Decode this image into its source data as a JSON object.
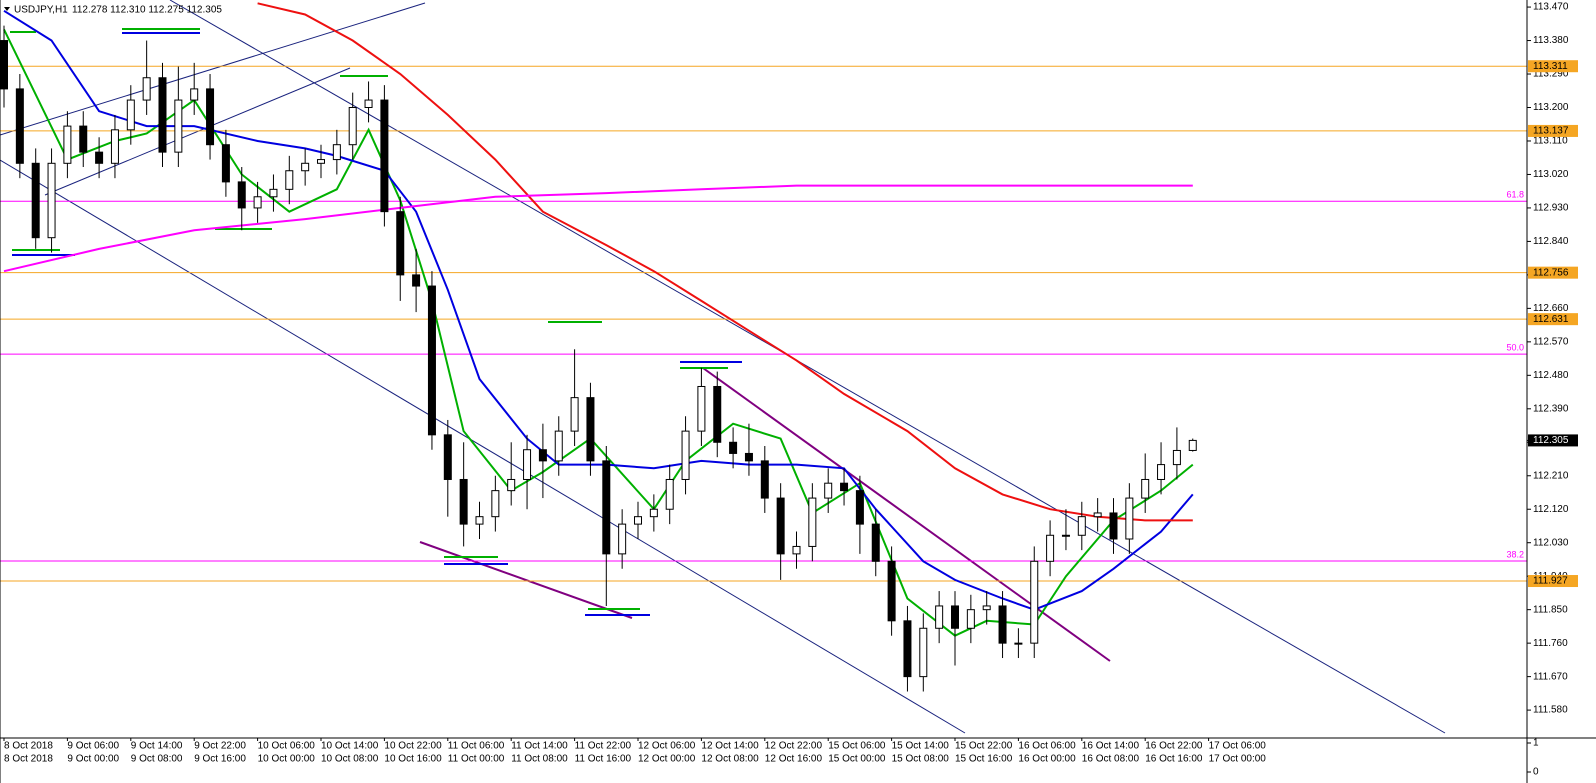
{
  "chart_data": {
    "type": "candlestick",
    "symbol": "USDJPY,H1",
    "quote": "112.278 112.310 112.275 112.305",
    "ylim": [
      111.505,
      113.489
    ],
    "yticks": [
      {
        "value": 113.47,
        "label": "113.470"
      },
      {
        "value": 113.38,
        "label": "113.380"
      },
      {
        "value": 113.29,
        "label": "113.290"
      },
      {
        "value": 113.2,
        "label": "113.200"
      },
      {
        "value": 113.11,
        "label": "113.110"
      },
      {
        "value": 113.02,
        "label": "113.020"
      },
      {
        "value": 112.93,
        "label": "112.930"
      },
      {
        "value": 112.84,
        "label": "112.840"
      },
      {
        "value": 112.75,
        "label": "112.750"
      },
      {
        "value": 112.66,
        "label": "112.660"
      },
      {
        "value": 112.57,
        "label": "112.570"
      },
      {
        "value": 112.48,
        "label": "112.480"
      },
      {
        "value": 112.39,
        "label": "112.390"
      },
      {
        "value": 112.3,
        "label": "112.300"
      },
      {
        "value": 112.21,
        "label": "112.210"
      },
      {
        "value": 112.12,
        "label": "112.120"
      },
      {
        "value": 112.03,
        "label": "112.030"
      },
      {
        "value": 111.94,
        "label": "111.940"
      },
      {
        "value": 111.85,
        "label": "111.850"
      },
      {
        "value": 111.76,
        "label": "111.760"
      },
      {
        "value": 111.67,
        "label": "111.670"
      },
      {
        "value": 111.58,
        "label": "111.580"
      }
    ],
    "candles": [
      [
        113.38,
        113.42,
        113.2,
        113.25
      ],
      [
        113.25,
        113.29,
        113.01,
        113.05
      ],
      [
        113.05,
        113.09,
        112.82,
        112.85
      ],
      [
        112.85,
        113.09,
        112.81,
        113.05
      ],
      [
        113.05,
        113.19,
        113.01,
        113.15
      ],
      [
        113.15,
        113.19,
        113.04,
        113.08
      ],
      [
        113.08,
        113.12,
        113.01,
        113.05
      ],
      [
        113.05,
        113.18,
        113.01,
        113.14
      ],
      [
        113.14,
        113.26,
        113.1,
        113.22
      ],
      [
        113.22,
        113.38,
        113.18,
        113.28
      ],
      [
        113.28,
        113.32,
        113.04,
        113.08
      ],
      [
        113.08,
        113.31,
        113.04,
        113.22
      ],
      [
        113.22,
        113.32,
        113.18,
        113.25
      ],
      [
        113.25,
        113.29,
        113.06,
        113.1
      ],
      [
        113.1,
        113.14,
        112.96,
        113.0
      ],
      [
        113.0,
        113.04,
        112.87,
        112.93
      ],
      [
        112.93,
        113.0,
        112.89,
        112.96
      ],
      [
        112.96,
        113.02,
        112.92,
        112.98
      ],
      [
        112.98,
        113.07,
        112.94,
        113.03
      ],
      [
        113.03,
        113.09,
        112.99,
        113.05
      ],
      [
        113.05,
        113.1,
        113.01,
        113.06
      ],
      [
        113.06,
        113.14,
        113.02,
        113.1
      ],
      [
        113.1,
        113.24,
        113.06,
        113.2
      ],
      [
        113.2,
        113.27,
        113.16,
        113.22
      ],
      [
        113.22,
        113.26,
        112.88,
        112.92
      ],
      [
        112.92,
        112.96,
        112.68,
        112.75
      ],
      [
        112.75,
        112.82,
        112.65,
        112.72
      ],
      [
        112.72,
        112.76,
        112.28,
        112.32
      ],
      [
        112.32,
        112.36,
        112.1,
        112.2
      ],
      [
        112.2,
        112.3,
        112.02,
        112.08
      ],
      [
        112.08,
        112.14,
        112.04,
        112.1
      ],
      [
        112.1,
        112.21,
        112.06,
        112.17
      ],
      [
        112.17,
        112.3,
        112.13,
        112.2
      ],
      [
        112.2,
        112.32,
        112.12,
        112.28
      ],
      [
        112.28,
        112.35,
        112.15,
        112.25
      ],
      [
        112.25,
        112.37,
        112.21,
        112.33
      ],
      [
        112.33,
        112.55,
        112.29,
        112.42
      ],
      [
        112.42,
        112.46,
        112.21,
        112.25
      ],
      [
        112.25,
        112.29,
        111.86,
        112.0
      ],
      [
        112.0,
        112.12,
        111.96,
        112.08
      ],
      [
        112.08,
        112.14,
        112.04,
        112.1
      ],
      [
        112.1,
        112.16,
        112.06,
        112.12
      ],
      [
        112.12,
        112.24,
        112.08,
        112.2
      ],
      [
        112.2,
        112.37,
        112.16,
        112.33
      ],
      [
        112.33,
        112.5,
        112.29,
        112.45
      ],
      [
        112.45,
        112.49,
        112.26,
        112.3
      ],
      [
        112.3,
        112.34,
        112.23,
        112.27
      ],
      [
        112.27,
        112.35,
        112.21,
        112.25
      ],
      [
        112.25,
        112.29,
        112.11,
        112.15
      ],
      [
        112.15,
        112.19,
        111.93,
        112.0
      ],
      [
        112.0,
        112.06,
        111.96,
        112.02
      ],
      [
        112.02,
        112.19,
        111.98,
        112.15
      ],
      [
        112.15,
        112.23,
        112.11,
        112.19
      ],
      [
        112.19,
        112.23,
        112.13,
        112.17
      ],
      [
        112.17,
        112.21,
        112.0,
        112.08
      ],
      [
        112.08,
        112.12,
        111.94,
        111.98
      ],
      [
        111.98,
        112.02,
        111.78,
        111.82
      ],
      [
        111.82,
        111.86,
        111.63,
        111.67
      ],
      [
        111.67,
        111.84,
        111.63,
        111.8
      ],
      [
        111.8,
        111.9,
        111.76,
        111.86
      ],
      [
        111.86,
        111.9,
        111.7,
        111.8
      ],
      [
        111.8,
        111.89,
        111.76,
        111.85
      ],
      [
        111.85,
        111.9,
        111.81,
        111.86
      ],
      [
        111.86,
        111.9,
        111.72,
        111.76
      ],
      [
        111.76,
        111.8,
        111.72,
        111.76
      ],
      [
        111.76,
        112.02,
        111.72,
        111.98
      ],
      [
        111.98,
        112.09,
        111.94,
        112.05
      ],
      [
        112.05,
        112.12,
        112.01,
        112.05
      ],
      [
        112.05,
        112.14,
        112.01,
        112.1
      ],
      [
        112.1,
        112.15,
        112.06,
        112.11
      ],
      [
        112.11,
        112.15,
        112.0,
        112.04
      ],
      [
        112.04,
        112.19,
        112.0,
        112.15
      ],
      [
        112.15,
        112.27,
        112.11,
        112.2
      ],
      [
        112.2,
        112.3,
        112.16,
        112.24
      ],
      [
        112.24,
        112.34,
        112.2,
        112.278
      ],
      [
        112.278,
        112.31,
        112.275,
        112.305
      ]
    ],
    "lines": [
      {
        "color": "#00b000",
        "x": [
          0,
          4,
          7,
          9,
          12,
          15,
          18,
          21,
          23,
          25,
          27,
          29,
          32,
          34,
          37,
          41,
          43,
          46,
          49,
          51,
          54,
          57,
          60,
          62,
          65,
          67,
          70,
          73,
          75
        ],
        "values": [
          113.41,
          113.06,
          113.11,
          113.13,
          113.22,
          113.02,
          112.92,
          112.98,
          113.14,
          112.95,
          112.68,
          112.33,
          112.17,
          112.22,
          112.31,
          112.12,
          112.25,
          112.35,
          112.31,
          112.11,
          112.19,
          111.88,
          111.78,
          111.82,
          111.81,
          111.94,
          112.09,
          112.17,
          112.24
        ]
      },
      {
        "color": "#0000e0",
        "x": [
          0,
          3,
          6,
          9,
          12,
          16,
          19,
          21,
          24,
          26,
          28,
          30,
          33,
          35,
          38,
          41,
          44,
          47,
          50,
          53,
          55,
          58,
          60,
          63,
          65,
          68,
          70,
          73,
          75
        ],
        "values": [
          113.46,
          113.38,
          113.19,
          113.15,
          113.15,
          113.11,
          113.09,
          113.07,
          113.03,
          112.92,
          112.71,
          112.47,
          112.31,
          112.24,
          112.24,
          112.23,
          112.25,
          112.24,
          112.24,
          112.23,
          112.12,
          111.98,
          111.93,
          111.88,
          111.85,
          111.9,
          111.96,
          112.06,
          112.16
        ]
      },
      {
        "color": "#ee1010",
        "x": [
          16,
          19,
          22,
          25,
          28,
          31,
          34,
          38,
          41,
          44,
          47,
          50,
          53,
          57,
          60,
          63,
          66,
          69,
          72,
          75
        ],
        "values": [
          113.48,
          113.45,
          113.38,
          113.29,
          113.18,
          113.06,
          112.92,
          112.83,
          112.76,
          112.68,
          112.6,
          112.52,
          112.43,
          112.33,
          112.23,
          112.16,
          112.12,
          112.1,
          112.09,
          112.09
        ]
      },
      {
        "color": "#ff00ff",
        "x": [
          0,
          6,
          12,
          19,
          25,
          31,
          38,
          44,
          50,
          63,
          75
        ],
        "values": [
          112.76,
          112.82,
          112.87,
          112.9,
          112.93,
          112.96,
          112.97,
          112.98,
          112.99,
          112.99,
          112.99
        ]
      }
    ],
    "price_levels": [
      113.311,
      113.137,
      112.756,
      112.631,
      111.927
    ],
    "level_color": "#f5a623",
    "fib_levels": [
      {
        "value": 112.948,
        "label": "61.8"
      },
      {
        "value": 112.537,
        "label": "50.0"
      },
      {
        "value": 111.981,
        "label": "38.2"
      }
    ],
    "fib_color": "#ff00ff",
    "current_price": 112.305,
    "time_labels_top": [
      "8 Oct 2018",
      "9 Oct 06:00",
      "9 Oct 14:00",
      "9 Oct 22:00",
      "10 Oct 06:00",
      "10 Oct 14:00",
      "10 Oct 22:00",
      "11 Oct 06:00",
      "11 Oct 14:00",
      "11 Oct 22:00",
      "12 Oct 06:00",
      "12 Oct 14:00",
      "12 Oct 22:00",
      "15 Oct 06:00",
      "15 Oct 14:00",
      "15 Oct 22:00",
      "16 Oct 06:00",
      "16 Oct 14:00",
      "16 Oct 22:00",
      "17 Oct 06:00"
    ],
    "time_labels_bottom": [
      "8 Oct 2018",
      "9 Oct 00:00",
      "9 Oct 08:00",
      "9 Oct 16:00",
      "10 Oct 00:00",
      "10 Oct 08:00",
      "10 Oct 16:00",
      "11 Oct 00:00",
      "11 Oct 08:00",
      "11 Oct 16:00",
      "12 Oct 00:00",
      "12 Oct 08:00",
      "12 Oct 16:00",
      "15 Oct 00:00",
      "15 Oct 08:00",
      "15 Oct 16:00",
      "16 Oct 00:00",
      "16 Oct 08:00",
      "16 Oct 16:00",
      "17 Oct 00:00"
    ],
    "indicator_ylim": [
      0,
      1
    ],
    "indicator_yticks": [
      1,
      0
    ]
  }
}
